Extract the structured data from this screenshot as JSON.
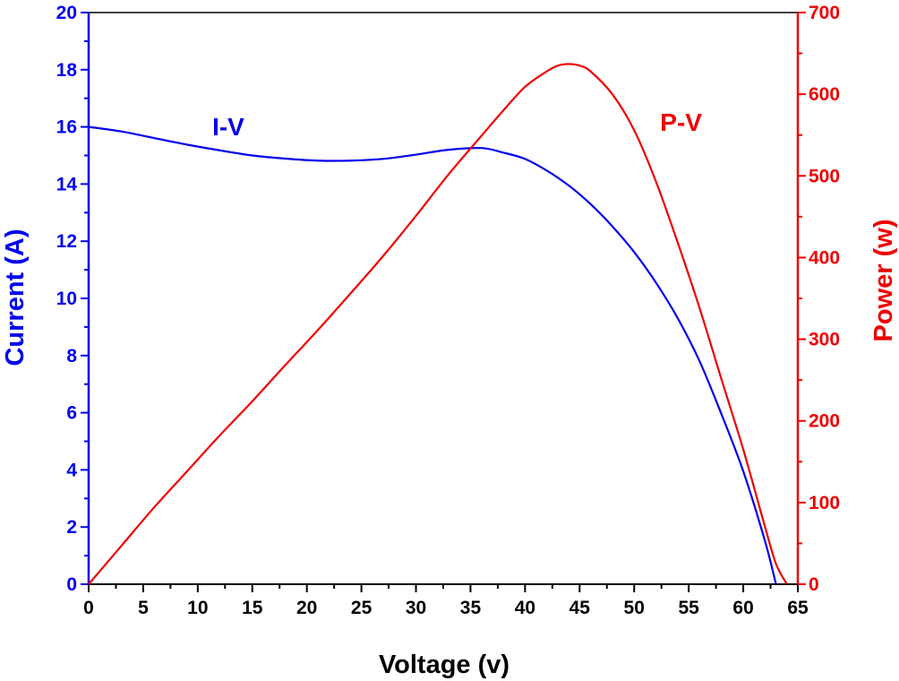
{
  "chart_data": {
    "type": "line",
    "title": "",
    "xlabel": "Voltage (v)",
    "ylabel_left": "Current (A)",
    "ylabel_right": "Power (w)",
    "xlim": [
      0,
      65
    ],
    "ylim_left": [
      0,
      20
    ],
    "ylim_right": [
      0,
      700
    ],
    "x_ticks": [
      "0",
      "5",
      "10",
      "15",
      "20",
      "25",
      "30",
      "35",
      "40",
      "45",
      "50",
      "55",
      "60",
      "65"
    ],
    "y_left_ticks": [
      "0",
      "2",
      "4",
      "6",
      "8",
      "10",
      "12",
      "14",
      "16",
      "18",
      "20"
    ],
    "y_right_ticks": [
      "0",
      "100",
      "200",
      "300",
      "400",
      "500",
      "600",
      "700"
    ],
    "grid": false,
    "colors": {
      "current": "#0000ee",
      "power": "#ee0000",
      "axis_x": "#000000"
    },
    "annotations": [
      {
        "text": "I-V",
        "series": "current",
        "x": 12.8,
        "y": 15.7
      },
      {
        "text": "P-V",
        "series": "power",
        "x": 54.3,
        "y": 555
      }
    ],
    "series": [
      {
        "id": "current",
        "axis": "left",
        "x": [
          0,
          3,
          6,
          9,
          12,
          15,
          18,
          21,
          24,
          27,
          30,
          33,
          36,
          38,
          40,
          42,
          44,
          46,
          48,
          50,
          52,
          54,
          56,
          58,
          60,
          62,
          63
        ],
        "values": [
          16.0,
          15.84,
          15.61,
          15.38,
          15.18,
          15.0,
          14.89,
          14.82,
          14.82,
          14.88,
          15.03,
          15.2,
          15.26,
          15.1,
          14.88,
          14.47,
          13.95,
          13.3,
          12.52,
          11.62,
          10.55,
          9.3,
          7.8,
          5.95,
          3.95,
          1.5,
          0.0
        ]
      },
      {
        "id": "power",
        "axis": "right",
        "x": [
          0,
          3,
          6,
          9,
          12,
          15,
          18,
          21,
          24,
          27,
          30,
          33,
          36,
          38,
          40,
          42,
          43,
          44,
          45,
          46,
          48,
          50,
          52,
          54,
          56,
          58,
          60,
          62,
          63,
          64
        ],
        "values": [
          0,
          47,
          94,
          138,
          182,
          224,
          268,
          311,
          356,
          402,
          451,
          502,
          549,
          580,
          609,
          628,
          635,
          637,
          635,
          628,
          600,
          556,
          493,
          418,
          338,
          251,
          165,
          70,
          25,
          0
        ]
      }
    ]
  }
}
